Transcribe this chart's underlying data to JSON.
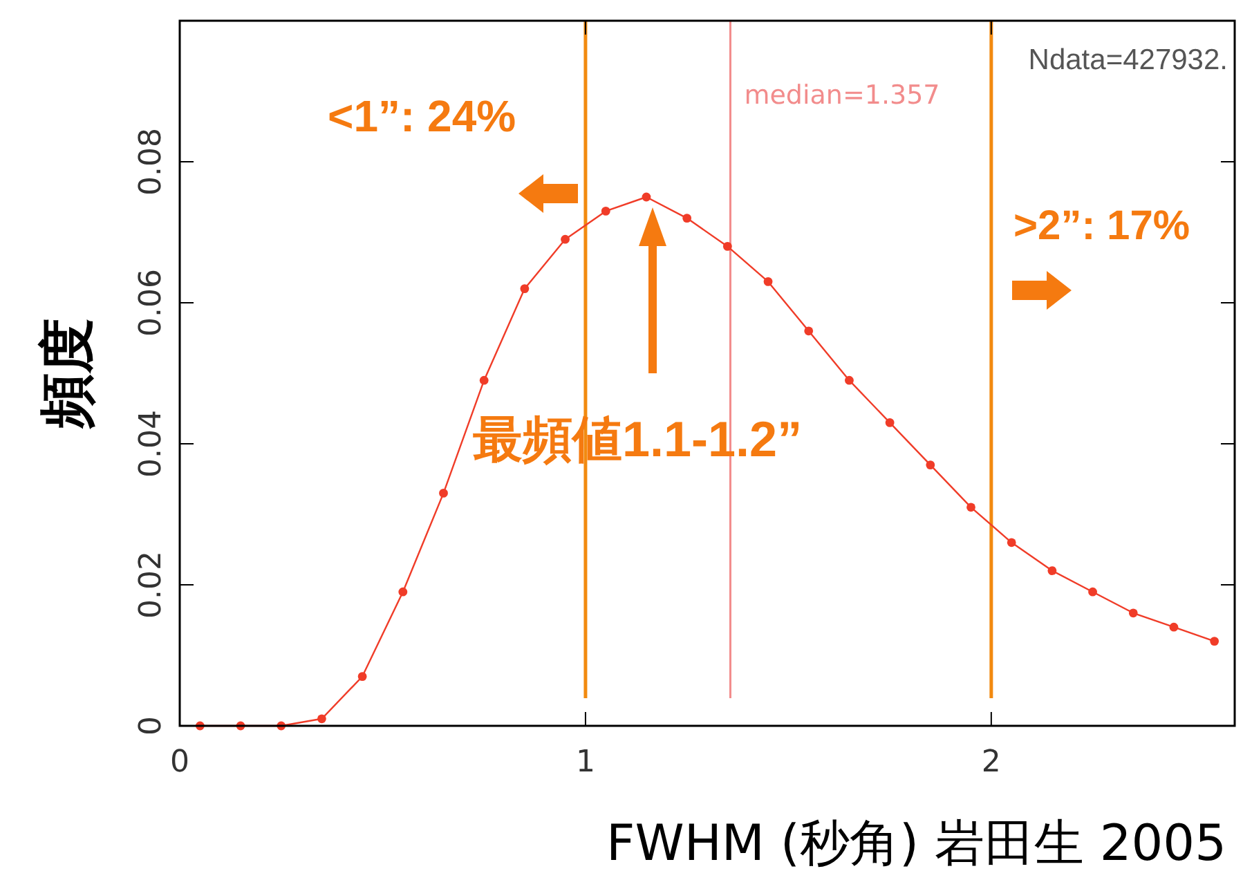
{
  "chart_data": {
    "type": "line",
    "xlabel": "FWHM (秒角) 岩田生 2005",
    "ylabel": "頻度",
    "x": [
      0.05,
      0.15,
      0.25,
      0.35,
      0.45,
      0.55,
      0.65,
      0.75,
      0.85,
      0.95,
      1.05,
      1.15,
      1.25,
      1.35,
      1.45,
      1.55,
      1.65,
      1.75,
      1.85,
      1.95,
      2.05,
      2.15,
      2.25,
      2.35,
      2.45,
      2.55
    ],
    "series": [
      {
        "color": "#f03c28",
        "values": [
          0,
          0,
          0,
          0.001,
          0.007,
          0.019,
          0.033,
          0.049,
          0.062,
          0.069,
          0.073,
          0.075,
          0.072,
          0.068,
          0.063,
          0.056,
          0.049,
          0.043,
          0.037,
          0.031,
          0.026,
          0.022,
          0.019,
          0.016,
          0.014,
          0.012
        ]
      }
    ],
    "marker": "circle",
    "line_style": "solid",
    "xlim": [
      0,
      2.6
    ],
    "xticks": [
      0,
      1,
      2
    ],
    "ylim": [
      0,
      0.1
    ],
    "yticks": [
      0,
      0.02,
      0.04,
      0.06,
      0.08
    ],
    "ref_lines": [
      {
        "axis": "x",
        "value": 1,
        "label": null,
        "color": "#f28a10"
      },
      {
        "axis": "x",
        "value": 2,
        "label": null,
        "color": "#f28a10"
      },
      {
        "axis": "x",
        "value": 1.357,
        "label": "median=1.357",
        "color": "#f28c8c"
      }
    ],
    "annotations": [
      "Ndata=427932.",
      "<1”: 24%",
      ">2”: 17%",
      "最頻値1.1-1.2”"
    ]
  }
}
